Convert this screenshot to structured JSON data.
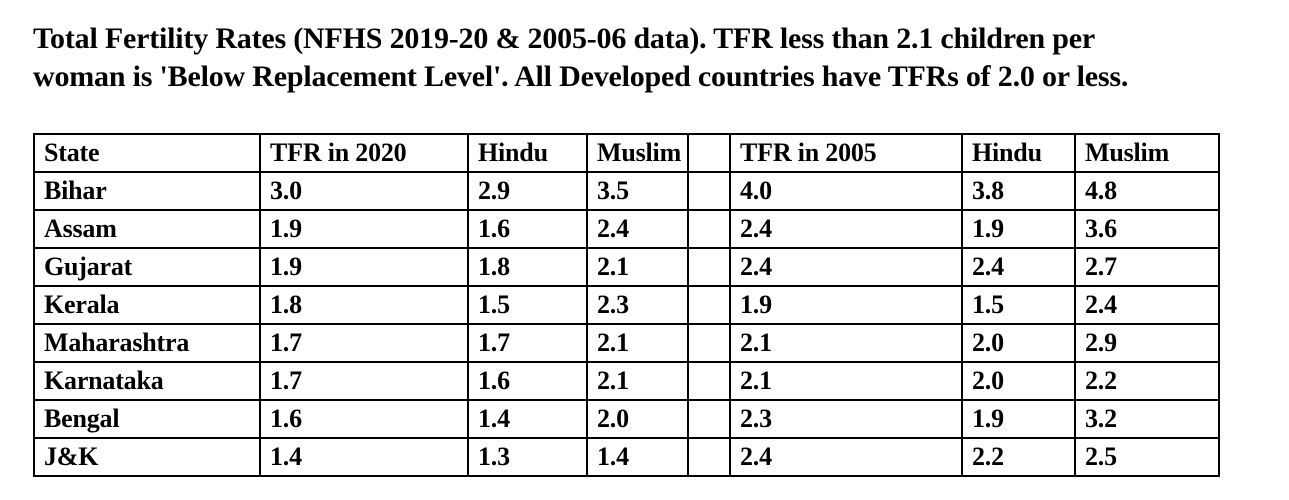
{
  "title": {
    "line1": "Total Fertility Rates (NFHS 2019-20 & 2005-06 data). TFR less than 2.1 children per",
    "line2": "woman is 'Below Replacement Level'. All Developed countries have TFRs of 2.0 or less."
  },
  "colors": {
    "text": "#000000",
    "background": "#ffffff",
    "border": "#000000"
  },
  "chart_data": {
    "type": "table",
    "columns": [
      "State",
      "TFR in 2020",
      "Hindu",
      "Muslim",
      "",
      "TFR in 2005",
      "Hindu",
      "Muslim"
    ],
    "rows": [
      [
        "Bihar",
        "3.0",
        "2.9",
        "3.5",
        "",
        "4.0",
        "3.8",
        "4.8"
      ],
      [
        "Assam",
        "1.9",
        "1.6",
        "2.4",
        "",
        "2.4",
        "1.9",
        "3.6"
      ],
      [
        "Gujarat",
        "1.9",
        "1.8",
        "2.1",
        "",
        "2.4",
        "2.4",
        "2.7"
      ],
      [
        "Kerala",
        "1.8",
        "1.5",
        "2.3",
        "",
        "1.9",
        "1.5",
        "2.4"
      ],
      [
        "Maharashtra",
        "1.7",
        "1.7",
        "2.1",
        "",
        "2.1",
        "2.0",
        "2.9"
      ],
      [
        "Karnataka",
        "1.7",
        "1.6",
        "2.1",
        "",
        "2.1",
        "2.0",
        "2.2"
      ],
      [
        "Bengal",
        "1.6",
        "1.4",
        "2.0",
        "",
        "2.3",
        "1.9",
        "3.2"
      ],
      [
        "J&K",
        "1.4",
        "1.3",
        "1.4",
        "",
        "2.4",
        "2.2",
        "2.5"
      ]
    ]
  }
}
